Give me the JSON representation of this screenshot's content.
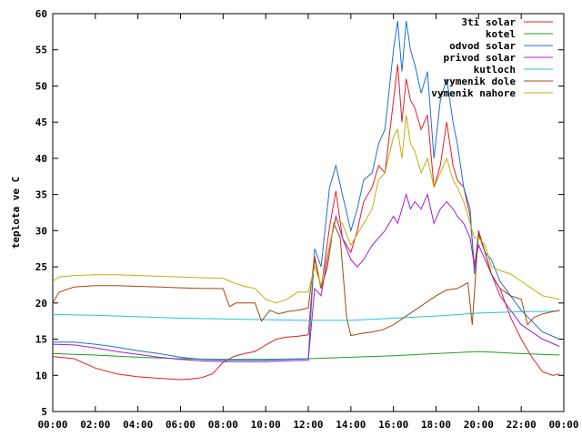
{
  "chart_data": {
    "type": "line",
    "title": "",
    "xlabel": "",
    "ylabel": "teplota ve C",
    "xlim": [
      0,
      24
    ],
    "ylim": [
      5,
      60
    ],
    "grid": false,
    "legend_position": "top-right",
    "x_tick_labels": [
      "00:00",
      "02:00",
      "04:00",
      "06:00",
      "08:00",
      "10:00",
      "12:00",
      "14:00",
      "16:00",
      "18:00",
      "20:00",
      "22:00",
      "00:00"
    ],
    "y_ticks": [
      5,
      10,
      15,
      20,
      25,
      30,
      35,
      40,
      45,
      50,
      55,
      60
    ],
    "series": [
      {
        "name": "3ti solar",
        "color": "#e0202a",
        "points": [
          [
            0,
            12.6
          ],
          [
            1,
            12.3
          ],
          [
            2,
            11.0
          ],
          [
            3,
            10.2
          ],
          [
            4,
            9.8
          ],
          [
            5,
            9.6
          ],
          [
            6,
            9.4
          ],
          [
            6.5,
            9.5
          ],
          [
            7,
            9.7
          ],
          [
            7.5,
            10.2
          ],
          [
            8,
            11.8
          ],
          [
            8.5,
            12.6
          ],
          [
            9,
            13.0
          ],
          [
            9.5,
            13.3
          ],
          [
            10,
            14.2
          ],
          [
            10.5,
            15.0
          ],
          [
            11,
            15.3
          ],
          [
            11.5,
            15.4
          ],
          [
            12,
            15.6
          ],
          [
            12.3,
            26.2
          ],
          [
            12.6,
            22.0
          ],
          [
            13,
            30.5
          ],
          [
            13.3,
            35.5
          ],
          [
            13.6,
            29.0
          ],
          [
            14,
            27.0
          ],
          [
            14.3,
            30.0
          ],
          [
            14.6,
            34.0
          ],
          [
            15,
            36.0
          ],
          [
            15.3,
            39.0
          ],
          [
            15.6,
            38.0
          ],
          [
            16,
            48.0
          ],
          [
            16.2,
            53.0
          ],
          [
            16.4,
            45.0
          ],
          [
            16.6,
            51.0
          ],
          [
            16.8,
            48.0
          ],
          [
            17,
            47.0
          ],
          [
            17.3,
            44.0
          ],
          [
            17.6,
            46.0
          ],
          [
            17.9,
            36.0
          ],
          [
            18.2,
            39.0
          ],
          [
            18.5,
            45.0
          ],
          [
            18.8,
            39.0
          ],
          [
            19,
            37.0
          ],
          [
            19.3,
            36.0
          ],
          [
            19.6,
            32.0
          ],
          [
            19.8,
            25.0
          ],
          [
            20,
            29.5
          ],
          [
            20.3,
            27.0
          ],
          [
            20.6,
            24.0
          ],
          [
            21,
            22.0
          ],
          [
            21.5,
            18.0
          ],
          [
            22,
            15.0
          ],
          [
            22.5,
            12.5
          ],
          [
            23,
            10.5
          ],
          [
            23.5,
            10.0
          ],
          [
            23.8,
            10.2
          ]
        ]
      },
      {
        "name": "kotel",
        "color": "#20a020",
        "points": [
          [
            0,
            13.0
          ],
          [
            2,
            12.8
          ],
          [
            4,
            12.5
          ],
          [
            6,
            12.3
          ],
          [
            8,
            12.2
          ],
          [
            10,
            12.2
          ],
          [
            12,
            12.3
          ],
          [
            14,
            12.5
          ],
          [
            16,
            12.7
          ],
          [
            18,
            13.0
          ],
          [
            20,
            13.3
          ],
          [
            22,
            13.0
          ],
          [
            23.8,
            12.8
          ]
        ]
      },
      {
        "name": "odvod solar",
        "color": "#2070d0",
        "points": [
          [
            0,
            14.6
          ],
          [
            1,
            14.6
          ],
          [
            2,
            14.3
          ],
          [
            3,
            13.9
          ],
          [
            4,
            13.4
          ],
          [
            5,
            13.0
          ],
          [
            6,
            12.5
          ],
          [
            7,
            12.2
          ],
          [
            8,
            12.1
          ],
          [
            9,
            12.1
          ],
          [
            10,
            12.1
          ],
          [
            11,
            12.2
          ],
          [
            12,
            12.3
          ],
          [
            12.3,
            27.5
          ],
          [
            12.6,
            25.0
          ],
          [
            13,
            36.0
          ],
          [
            13.3,
            39.0
          ],
          [
            13.6,
            35.0
          ],
          [
            14,
            30.0
          ],
          [
            14.3,
            33.0
          ],
          [
            14.6,
            37.0
          ],
          [
            15,
            38.0
          ],
          [
            15.3,
            42.0
          ],
          [
            15.6,
            44.0
          ],
          [
            16,
            55.0
          ],
          [
            16.2,
            59.0
          ],
          [
            16.4,
            52.0
          ],
          [
            16.6,
            59.0
          ],
          [
            16.8,
            55.0
          ],
          [
            17,
            53.0
          ],
          [
            17.3,
            49.0
          ],
          [
            17.6,
            52.0
          ],
          [
            17.9,
            40.0
          ],
          [
            18.2,
            48.0
          ],
          [
            18.5,
            51.0
          ],
          [
            18.8,
            45.0
          ],
          [
            19,
            42.0
          ],
          [
            19.3,
            36.0
          ],
          [
            19.6,
            33.0
          ],
          [
            19.8,
            24.0
          ],
          [
            20,
            30.0
          ],
          [
            20.3,
            27.0
          ],
          [
            20.6,
            26.0
          ],
          [
            21,
            23.0
          ],
          [
            21.5,
            21.0
          ],
          [
            22,
            19.0
          ],
          [
            22.5,
            17.5
          ],
          [
            23,
            16.0
          ],
          [
            23.8,
            15.0
          ]
        ]
      },
      {
        "name": "privod solar",
        "color": "#a020d0",
        "points": [
          [
            0,
            14.3
          ],
          [
            1,
            14.2
          ],
          [
            2,
            13.8
          ],
          [
            3,
            13.3
          ],
          [
            4,
            12.9
          ],
          [
            5,
            12.5
          ],
          [
            6,
            12.2
          ],
          [
            7,
            12.0
          ],
          [
            8,
            11.9
          ],
          [
            9,
            11.9
          ],
          [
            10,
            11.9
          ],
          [
            11,
            12.0
          ],
          [
            12,
            12.1
          ],
          [
            12.3,
            22.0
          ],
          [
            12.6,
            21.0
          ],
          [
            13,
            28.0
          ],
          [
            13.3,
            32.0
          ],
          [
            13.6,
            29.0
          ],
          [
            14,
            26.0
          ],
          [
            14.3,
            25.0
          ],
          [
            14.6,
            26.0
          ],
          [
            15,
            28.0
          ],
          [
            15.3,
            29.0
          ],
          [
            15.6,
            30.0
          ],
          [
            16,
            32.0
          ],
          [
            16.2,
            31.0
          ],
          [
            16.4,
            33.0
          ],
          [
            16.6,
            35.0
          ],
          [
            16.8,
            33.0
          ],
          [
            17,
            34.0
          ],
          [
            17.3,
            33.0
          ],
          [
            17.6,
            35.0
          ],
          [
            17.9,
            31.0
          ],
          [
            18.2,
            33.0
          ],
          [
            18.5,
            34.0
          ],
          [
            18.8,
            33.0
          ],
          [
            19,
            32.0
          ],
          [
            19.3,
            31.0
          ],
          [
            19.6,
            29.0
          ],
          [
            19.8,
            25.0
          ],
          [
            20,
            28.0
          ],
          [
            20.3,
            26.0
          ],
          [
            20.6,
            24.0
          ],
          [
            21,
            21.0
          ],
          [
            21.5,
            19.0
          ],
          [
            22,
            17.0
          ],
          [
            22.5,
            16.0
          ],
          [
            23,
            15.0
          ],
          [
            23.8,
            14.0
          ]
        ]
      },
      {
        "name": "kutloch",
        "color": "#20c8d0",
        "points": [
          [
            0,
            18.4
          ],
          [
            2,
            18.3
          ],
          [
            4,
            18.1
          ],
          [
            6,
            17.9
          ],
          [
            8,
            17.8
          ],
          [
            10,
            17.7
          ],
          [
            12,
            17.6
          ],
          [
            14,
            17.6
          ],
          [
            16,
            17.9
          ],
          [
            18,
            18.2
          ],
          [
            20,
            18.6
          ],
          [
            22,
            18.8
          ],
          [
            23.8,
            18.9
          ]
        ]
      },
      {
        "name": "vymenik dole",
        "color": "#a04810",
        "points": [
          [
            0,
            20.0
          ],
          [
            0.3,
            21.5
          ],
          [
            1,
            22.2
          ],
          [
            2,
            22.4
          ],
          [
            3,
            22.4
          ],
          [
            4,
            22.3
          ],
          [
            5,
            22.2
          ],
          [
            6,
            22.1
          ],
          [
            7,
            22.0
          ],
          [
            8,
            22.0
          ],
          [
            8.3,
            19.5
          ],
          [
            8.6,
            20.0
          ],
          [
            9,
            20.0
          ],
          [
            9.5,
            20.0
          ],
          [
            9.8,
            17.5
          ],
          [
            10.2,
            19.0
          ],
          [
            10.6,
            18.5
          ],
          [
            11,
            18.8
          ],
          [
            11.5,
            19.0
          ],
          [
            12,
            19.3
          ],
          [
            12.3,
            26.5
          ],
          [
            12.6,
            22.0
          ],
          [
            12.9,
            25.0
          ],
          [
            13.2,
            31.0
          ],
          [
            13.5,
            29.0
          ],
          [
            13.8,
            18.0
          ],
          [
            14,
            15.5
          ],
          [
            14.5,
            15.8
          ],
          [
            15,
            16.0
          ],
          [
            15.5,
            16.3
          ],
          [
            16,
            17.0
          ],
          [
            16.5,
            18.0
          ],
          [
            17,
            19.0
          ],
          [
            17.5,
            20.0
          ],
          [
            18,
            21.0
          ],
          [
            18.5,
            21.8
          ],
          [
            19,
            22.0
          ],
          [
            19.5,
            22.8
          ],
          [
            19.7,
            17.0
          ],
          [
            20,
            30.0
          ],
          [
            20.3,
            27.0
          ],
          [
            20.6,
            24.0
          ],
          [
            21,
            22.0
          ],
          [
            21.5,
            21.0
          ],
          [
            22,
            20.5
          ],
          [
            22.3,
            17.0
          ],
          [
            22.6,
            18.0
          ],
          [
            23,
            18.5
          ],
          [
            23.8,
            19.0
          ]
        ]
      },
      {
        "name": "vymenik nahore",
        "color": "#c0b010",
        "points": [
          [
            0,
            23.0
          ],
          [
            0.3,
            23.6
          ],
          [
            1,
            23.8
          ],
          [
            2,
            23.9
          ],
          [
            3,
            23.9
          ],
          [
            4,
            23.8
          ],
          [
            5,
            23.7
          ],
          [
            6,
            23.6
          ],
          [
            7,
            23.5
          ],
          [
            8,
            23.4
          ],
          [
            8.5,
            22.8
          ],
          [
            9,
            22.3
          ],
          [
            9.5,
            22.0
          ],
          [
            10,
            20.5
          ],
          [
            10.5,
            20.0
          ],
          [
            11,
            20.5
          ],
          [
            11.5,
            21.5
          ],
          [
            12,
            21.5
          ],
          [
            12.3,
            25.0
          ],
          [
            12.6,
            22.5
          ],
          [
            13,
            28.0
          ],
          [
            13.3,
            31.5
          ],
          [
            13.6,
            31.0
          ],
          [
            14,
            28.0
          ],
          [
            14.3,
            29.5
          ],
          [
            14.6,
            31.0
          ],
          [
            15,
            33.0
          ],
          [
            15.3,
            37.0
          ],
          [
            15.6,
            38.0
          ],
          [
            16,
            43.0
          ],
          [
            16.2,
            44.0
          ],
          [
            16.4,
            40.0
          ],
          [
            16.6,
            46.0
          ],
          [
            16.8,
            42.0
          ],
          [
            17,
            41.0
          ],
          [
            17.3,
            38.0
          ],
          [
            17.6,
            40.0
          ],
          [
            17.9,
            36.0
          ],
          [
            18.2,
            38.0
          ],
          [
            18.5,
            40.0
          ],
          [
            18.8,
            37.0
          ],
          [
            19,
            36.0
          ],
          [
            19.3,
            34.0
          ],
          [
            19.6,
            31.0
          ],
          [
            19.8,
            29.0
          ],
          [
            20,
            29.0
          ],
          [
            20.3,
            28.0
          ],
          [
            20.6,
            25.0
          ],
          [
            21,
            24.5
          ],
          [
            21.5,
            24.0
          ],
          [
            22,
            23.0
          ],
          [
            22.5,
            22.0
          ],
          [
            23,
            21.0
          ],
          [
            23.8,
            20.5
          ]
        ]
      }
    ]
  }
}
